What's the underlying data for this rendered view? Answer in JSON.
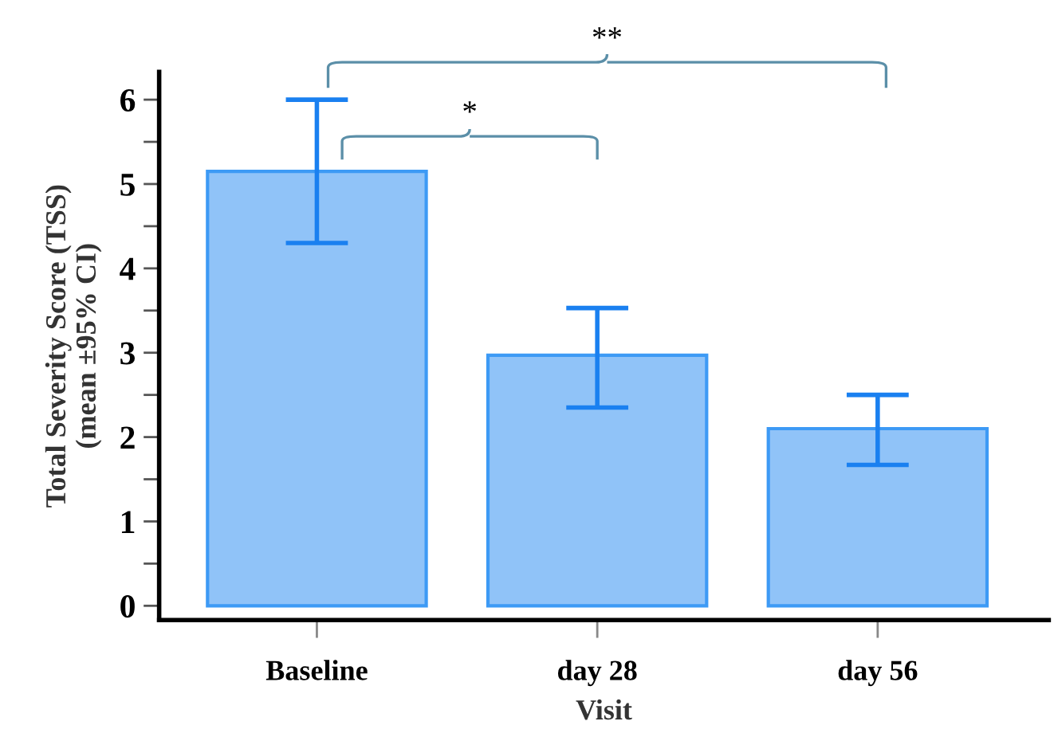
{
  "chart_data": {
    "type": "bar",
    "xlabel": "Visit",
    "ylabel": "Total Severity Score (TSS)\n(mean ±95% CI)",
    "categories": [
      "Baseline",
      "day 28",
      "day 56"
    ],
    "values": [
      5.15,
      2.97,
      2.1
    ],
    "errors": [
      [
        4.3,
        6.0
      ],
      [
        2.35,
        3.53
      ],
      [
        1.67,
        2.5
      ]
    ],
    "color": "#90c3f8",
    "ylim": [
      -0.17,
      6.33
    ],
    "yticks": [
      0,
      {
        "value": 0.5,
        "label": null
      },
      1,
      {
        "value": 1.5,
        "label": null
      },
      2,
      {
        "value": 2.5,
        "label": null
      },
      3,
      {
        "value": 3.5,
        "label": null
      },
      4,
      {
        "value": 4.5,
        "label": null
      },
      5,
      {
        "value": 5.5,
        "label": null
      },
      6
    ],
    "annotations": [
      "*",
      "**"
    ],
    "grid": false
  }
}
